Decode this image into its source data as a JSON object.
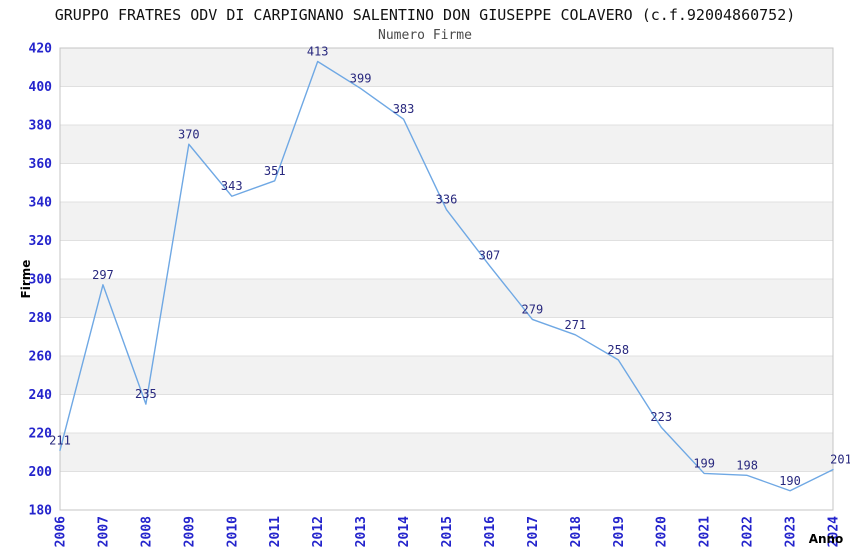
{
  "chart_data": {
    "type": "line",
    "title": "GRUPPO FRATRES ODV DI CARPIGNANO SALENTINO DON GIUSEPPE COLAVERO (c.f.92004860752)",
    "subtitle": "Numero Firme",
    "xlabel": "Anno",
    "ylabel": "Firme",
    "categories": [
      "2006",
      "2007",
      "2008",
      "2009",
      "2010",
      "2011",
      "2012",
      "2013",
      "2014",
      "2015",
      "2016",
      "2017",
      "2018",
      "2019",
      "2020",
      "2021",
      "2022",
      "2023",
      "2024"
    ],
    "series": [
      {
        "name": "Numero Firme",
        "values": [
          211,
          297,
          235,
          370,
          343,
          351,
          413,
          399,
          383,
          336,
          307,
          279,
          271,
          258,
          223,
          199,
          198,
          190,
          201
        ]
      }
    ],
    "ylim": [
      180,
      420
    ],
    "ytick_step": 20,
    "yticks": [
      180,
      200,
      220,
      240,
      260,
      280,
      300,
      320,
      340,
      360,
      380,
      400,
      420
    ],
    "grid": "horizontal-only",
    "legend_position": "none",
    "data_labels": "above-points",
    "colors": {
      "line": "#6fa8e4",
      "tick_label": "#2424cc",
      "data_label": "#28287e",
      "band_fill": "#f2f2f2",
      "gridline": "#e0e0e0",
      "plot_border": "#c4c4c4",
      "axis_title": "#000000",
      "title": "#111111",
      "subtitle": "#4a4a4a",
      "background": "#ffffff"
    }
  }
}
